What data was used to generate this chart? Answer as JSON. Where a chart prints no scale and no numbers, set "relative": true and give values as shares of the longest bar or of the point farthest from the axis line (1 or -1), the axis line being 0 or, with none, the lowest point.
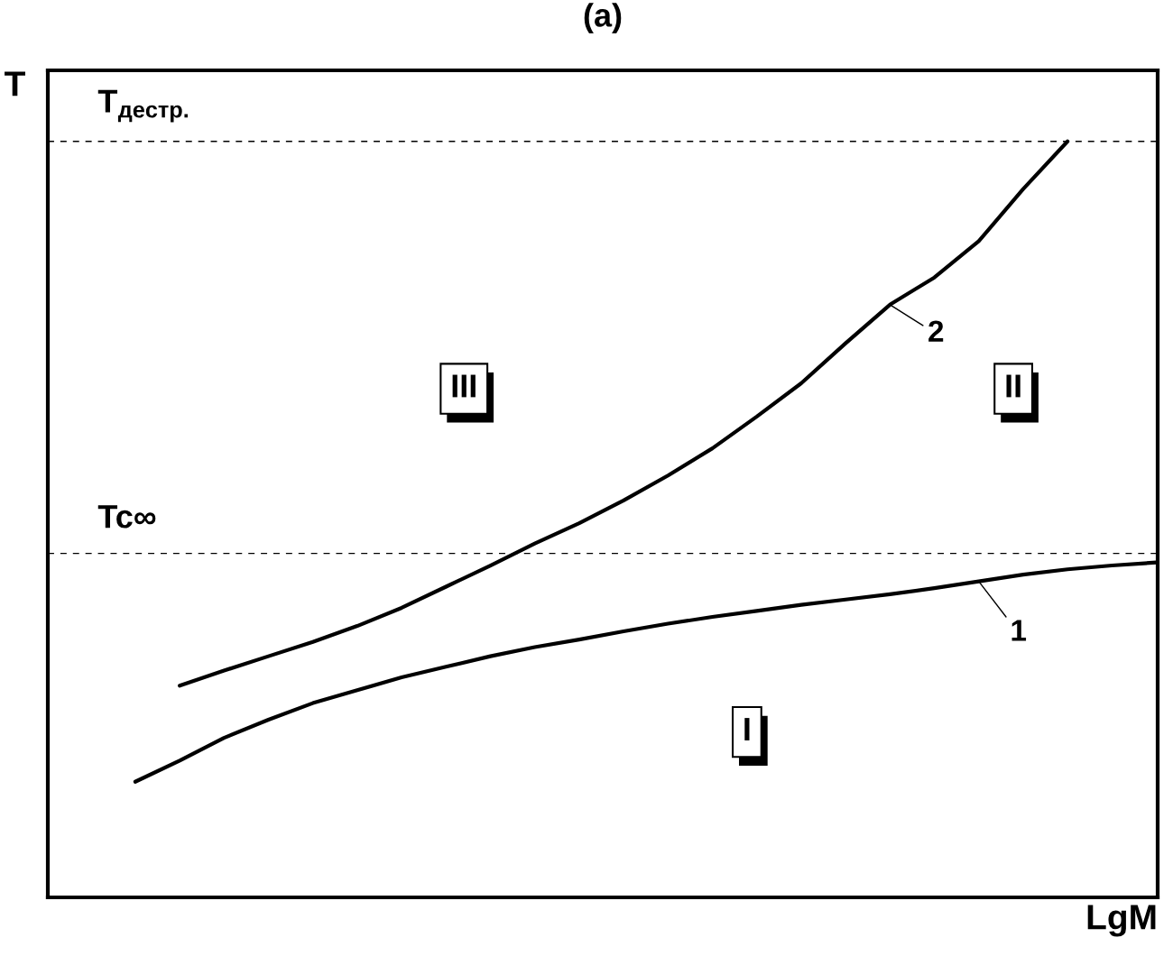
{
  "chart_data": {
    "type": "line",
    "relative": true,
    "title": "(a)",
    "xlabel": "LgM",
    "ylabel": "T",
    "categories": [
      null,
      null,
      null,
      null,
      null,
      null,
      null,
      null,
      null,
      null,
      null,
      null,
      null,
      null,
      null,
      null,
      null,
      null,
      null,
      null,
      null,
      null,
      null,
      null
    ],
    "series": [
      {
        "name": "1",
        "color": "#000000",
        "values": [
          0.153,
          0.181,
          0.211,
          0.235,
          0.257,
          0.274,
          0.291,
          0.305,
          0.319,
          0.331,
          0.341,
          0.352,
          0.362,
          0.371,
          0.379,
          0.387,
          0.394,
          0.401,
          0.409,
          0.418,
          0.427,
          0.434,
          0.439,
          0.443
        ]
      },
      {
        "name": "2",
        "color": "#000000",
        "values": [
          null,
          0.28,
          0.3,
          0.319,
          0.338,
          0.359,
          0.383,
          0.411,
          0.439,
          0.468,
          0.495,
          0.525,
          0.558,
          0.594,
          0.636,
          0.68,
          0.733,
          0.784,
          0.82,
          0.868,
          0.937,
          1.0,
          null,
          null
        ]
      }
    ],
    "ref_lines": [
      {
        "axis": "y",
        "value": 1.0,
        "label": "T$_{дестр.}$",
        "color": "#000000",
        "line_style": "dashed"
      },
      {
        "axis": "y",
        "value": 0.455,
        "label": "Tc∞",
        "color": "#000000",
        "line_style": "dashed"
      }
    ],
    "annotations": [
      "III",
      "II",
      "I"
    ],
    "legend": "right",
    "marker": "none",
    "line_style": "solid"
  }
}
